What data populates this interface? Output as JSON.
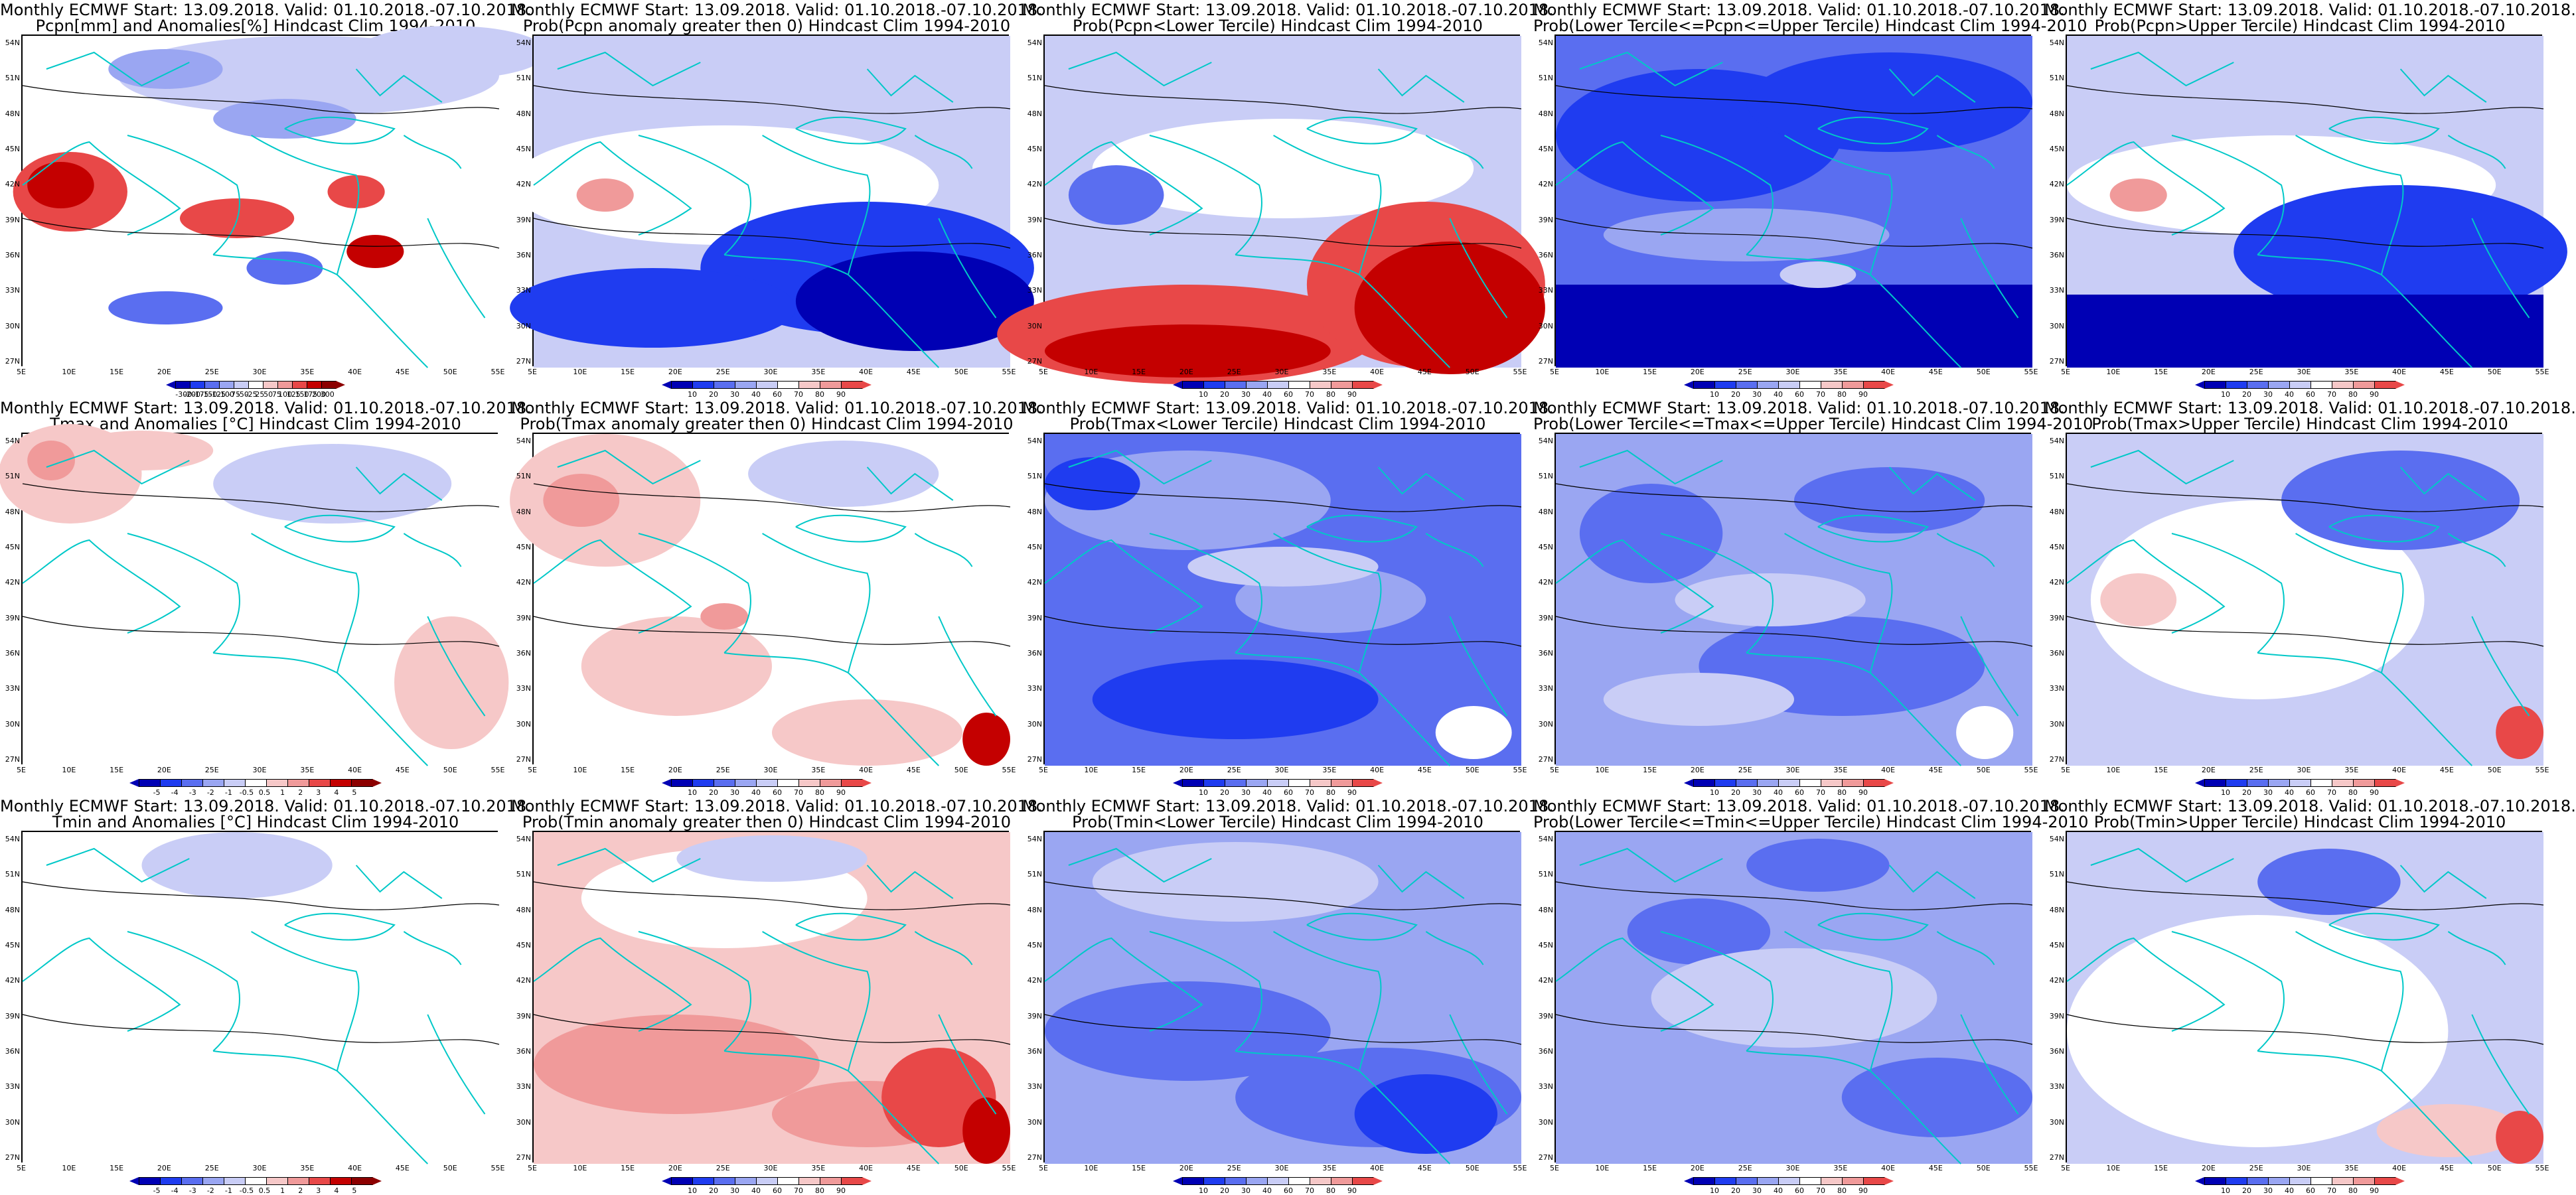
{
  "lat_labels": [
    "54N",
    "51N",
    "48N",
    "45N",
    "42N",
    "39N",
    "36N",
    "33N",
    "30N",
    "27N"
  ],
  "lon_labels": [
    "5E",
    "10E",
    "15E",
    "20E",
    "25E",
    "30E",
    "35E",
    "40E",
    "45E",
    "50E",
    "55E"
  ],
  "colors": {
    "deep_blue": "#0000b4",
    "blue": "#1f3cf0",
    "mid_blue": "#5a6ef0",
    "light_blue": "#9aa6f2",
    "pale_blue": "#c9cdf6",
    "white": "#ffffff",
    "pale_red": "#f6c8c8",
    "light_red": "#f09a9a",
    "red": "#e84848",
    "deep_red": "#c40000",
    "dark_red": "#8c0000",
    "coast": "#00c8c8",
    "contour": "#000000"
  },
  "colorbars": {
    "anom_pcp": [
      "-300",
      "-200",
      "-175",
      "-150",
      "-125",
      "-100",
      "-75",
      "-50",
      "-25",
      "25",
      "50",
      "75",
      "100",
      "125",
      "150",
      "175",
      "200",
      "300"
    ],
    "prob": [
      "10",
      "20",
      "30",
      "40",
      "60",
      "70",
      "80",
      "90"
    ],
    "anom_temp": [
      "-5",
      "-4",
      "-3",
      "-2",
      "-1",
      "-0.5",
      "0.5",
      "1",
      "2",
      "3",
      "4",
      "5"
    ]
  },
  "panels": [
    {
      "row": 0,
      "col": 0,
      "bar": "anom_pcp",
      "pattern": "pcp_anom",
      "title1": "Monthly ECMWF Start: 13.09.2018. Valid: 01.10.2018.-07.10.2018.",
      "title2": "Pcpn[mm] and Anomalies[%] Hindcast Clim 1994-2010"
    },
    {
      "row": 0,
      "col": 1,
      "bar": "prob",
      "pattern": "pcp_gt0",
      "title1": "Monthly ECMWF Start: 13.09.2018. Valid: 01.10.2018.-07.10.2018.",
      "title2": "Prob(Pcpn anomaly greater then 0) Hindcast Clim 1994-2010"
    },
    {
      "row": 0,
      "col": 2,
      "bar": "prob",
      "pattern": "pcp_low",
      "title1": "Monthly ECMWF Start: 13.09.2018. Valid: 01.10.2018.-07.10.2018.",
      "title2": "Prob(Pcpn<Lower Tercile) Hindcast Clim 1994-2010"
    },
    {
      "row": 0,
      "col": 3,
      "bar": "prob",
      "pattern": "pcp_mid",
      "title1": "Monthly ECMWF Start: 13.09.2018. Valid: 01.10.2018.-07.10.2018.",
      "title2": "Prob(Lower Tercile<=Pcpn<=Upper Tercile) Hindcast Clim 1994-2010"
    },
    {
      "row": 0,
      "col": 4,
      "bar": "prob",
      "pattern": "pcp_up",
      "title1": "Monthly ECMWF Start: 13.09.2018. Valid: 01.10.2018.-07.10.2018.",
      "title2": "Prob(Pcpn>Upper Tercile) Hindcast Clim 1994-2010"
    },
    {
      "row": 1,
      "col": 0,
      "bar": "anom_temp",
      "pattern": "tmax_anom",
      "title1": "Monthly ECMWF Start: 13.09.2018. Valid: 01.10.2018.-07.10.2018.",
      "title2": "Tmax and Anomalies [°C] Hindcast Clim 1994-2010"
    },
    {
      "row": 1,
      "col": 1,
      "bar": "prob",
      "pattern": "tmax_gt0",
      "title1": "Monthly ECMWF Start: 13.09.2018. Valid: 01.10.2018.-07.10.2018.",
      "title2": "Prob(Tmax anomaly greater then 0) Hindcast Clim 1994-2010"
    },
    {
      "row": 1,
      "col": 2,
      "bar": "prob",
      "pattern": "tmax_low",
      "title1": "Monthly ECMWF Start: 13.09.2018. Valid: 01.10.2018.-07.10.2018.",
      "title2": "Prob(Tmax<Lower Tercile) Hindcast Clim 1994-2010"
    },
    {
      "row": 1,
      "col": 3,
      "bar": "prob",
      "pattern": "tmax_mid",
      "title1": "Monthly ECMWF Start: 13.09.2018. Valid: 01.10.2018.-07.10.2018.",
      "title2": "Prob(Lower Tercile<=Tmax<=Upper Tercile) Hindcast Clim 1994-2010"
    },
    {
      "row": 1,
      "col": 4,
      "bar": "prob",
      "pattern": "tmax_up",
      "title1": "Monthly ECMWF Start: 13.09.2018. Valid: 01.10.2018.-07.10.2018.",
      "title2": "Prob(Tmax>Upper Tercile) Hindcast Clim 1994-2010"
    },
    {
      "row": 2,
      "col": 0,
      "bar": "anom_temp",
      "pattern": "tmin_anom",
      "title1": "Monthly ECMWF Start: 13.09.2018. Valid: 01.10.2018.-07.10.2018.",
      "title2": "Tmin and Anomalies [°C] Hindcast Clim 1994-2010"
    },
    {
      "row": 2,
      "col": 1,
      "bar": "prob",
      "pattern": "tmin_gt0",
      "title1": "Monthly ECMWF Start: 13.09.2018. Valid: 01.10.2018.-07.10.2018.",
      "title2": "Prob(Tmin anomaly greater then 0) Hindcast Clim 1994-2010"
    },
    {
      "row": 2,
      "col": 2,
      "bar": "prob",
      "pattern": "tmin_low",
      "title1": "Monthly ECMWF Start: 13.09.2018. Valid: 01.10.2018.-07.10.2018.",
      "title2": "Prob(Tmin<Lower Tercile) Hindcast Clim 1994-2010"
    },
    {
      "row": 2,
      "col": 3,
      "bar": "prob",
      "pattern": "tmin_mid",
      "title1": "Monthly ECMWF Start: 13.09.2018. Valid: 01.10.2018.-07.10.2018.",
      "title2": "Prob(Lower Tercile<=Tmin<=Upper Tercile) Hindcast Clim 1994-2010"
    },
    {
      "row": 2,
      "col": 4,
      "bar": "prob",
      "pattern": "tmin_up",
      "title1": "Monthly ECMWF Start: 13.09.2018. Valid: 01.10.2018.-07.10.2018.",
      "title2": "Prob(Tmin>Upper Tercile) Hindcast Clim 1994-2010"
    }
  ]
}
